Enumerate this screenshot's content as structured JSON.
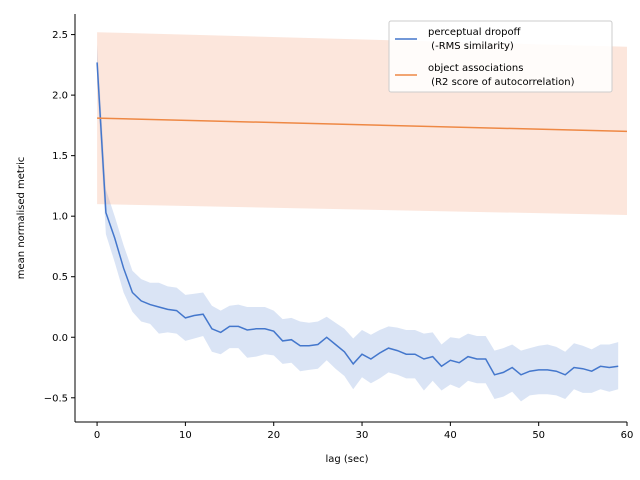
{
  "chart_data": {
    "type": "line",
    "xlabel": "lag (sec)",
    "ylabel": "mean normalised metric",
    "xlim": [
      -2.5,
      60
    ],
    "ylim": [
      -0.7,
      2.67
    ],
    "xticks": [
      0,
      10,
      20,
      30,
      40,
      50,
      60
    ],
    "yticks": [
      -0.5,
      0.0,
      0.5,
      1.0,
      1.5,
      2.0,
      2.5
    ],
    "xtick_labels": [
      "0",
      "10",
      "20",
      "30",
      "40",
      "50",
      "60"
    ],
    "ytick_labels": [
      "−0.5",
      "0.0",
      "0.5",
      "1.0",
      "1.5",
      "2.0",
      "2.5"
    ],
    "grid": false,
    "legend_position": "top-right",
    "series": [
      {
        "name": "perceptual dropoff\n (-RMS similarity)",
        "color": "#4477cc",
        "band_color": "#4477cc",
        "x": [
          0,
          1,
          2,
          3,
          4,
          5,
          6,
          7,
          8,
          9,
          10,
          11,
          12,
          13,
          14,
          15,
          16,
          17,
          18,
          19,
          20,
          21,
          22,
          23,
          24,
          25,
          26,
          27,
          28,
          29,
          30,
          31,
          32,
          33,
          34,
          35,
          36,
          37,
          38,
          39,
          40,
          41,
          42,
          43,
          44,
          45,
          46,
          47,
          48,
          49,
          50,
          51,
          52,
          53,
          54,
          55,
          56,
          57,
          58,
          59
        ],
        "values": [
          2.27,
          1.03,
          0.82,
          0.57,
          0.37,
          0.3,
          0.27,
          0.25,
          0.23,
          0.22,
          0.16,
          0.18,
          0.19,
          0.07,
          0.04,
          0.09,
          0.09,
          0.06,
          0.07,
          0.07,
          0.05,
          -0.03,
          -0.02,
          -0.07,
          -0.07,
          -0.06,
          0.0,
          -0.06,
          -0.12,
          -0.22,
          -0.14,
          -0.18,
          -0.13,
          -0.09,
          -0.11,
          -0.14,
          -0.14,
          -0.18,
          -0.16,
          -0.24,
          -0.19,
          -0.21,
          -0.16,
          -0.18,
          -0.18,
          -0.31,
          -0.29,
          -0.25,
          -0.31,
          -0.28,
          -0.27,
          -0.27,
          -0.28,
          -0.31,
          -0.25,
          -0.26,
          -0.28,
          -0.24,
          -0.25,
          -0.24
        ],
        "lower": [
          2.1,
          0.85,
          0.62,
          0.37,
          0.21,
          0.13,
          0.11,
          0.03,
          0.04,
          0.03,
          -0.03,
          -0.01,
          0.01,
          -0.12,
          -0.14,
          -0.09,
          -0.09,
          -0.17,
          -0.16,
          -0.14,
          -0.15,
          -0.22,
          -0.21,
          -0.28,
          -0.27,
          -0.26,
          -0.19,
          -0.26,
          -0.32,
          -0.43,
          -0.33,
          -0.38,
          -0.34,
          -0.29,
          -0.31,
          -0.34,
          -0.34,
          -0.44,
          -0.36,
          -0.44,
          -0.39,
          -0.42,
          -0.36,
          -0.38,
          -0.38,
          -0.51,
          -0.49,
          -0.45,
          -0.53,
          -0.48,
          -0.47,
          -0.47,
          -0.48,
          -0.51,
          -0.43,
          -0.46,
          -0.46,
          -0.43,
          -0.45,
          -0.43
        ],
        "upper": [
          2.42,
          1.22,
          1.0,
          0.76,
          0.55,
          0.48,
          0.45,
          0.45,
          0.42,
          0.41,
          0.35,
          0.36,
          0.37,
          0.26,
          0.22,
          0.26,
          0.27,
          0.25,
          0.25,
          0.25,
          0.22,
          0.15,
          0.16,
          0.13,
          0.12,
          0.13,
          0.17,
          0.12,
          0.07,
          -0.01,
          0.06,
          0.02,
          0.06,
          0.09,
          0.08,
          0.06,
          0.06,
          0.03,
          0.04,
          -0.06,
          0.0,
          -0.01,
          0.03,
          0.01,
          0.01,
          -0.11,
          -0.09,
          -0.06,
          -0.11,
          -0.09,
          -0.07,
          -0.06,
          -0.08,
          -0.12,
          -0.05,
          -0.07,
          -0.1,
          -0.06,
          -0.06,
          -0.04
        ]
      },
      {
        "name": "object associations\n (R2 score of autocorrelation)",
        "color": "#ee8844",
        "band_color": "#f4a582",
        "x": [
          0,
          60
        ],
        "values": [
          1.81,
          1.7
        ],
        "lower": [
          1.1,
          1.01
        ],
        "upper": [
          2.52,
          2.4
        ]
      }
    ]
  }
}
